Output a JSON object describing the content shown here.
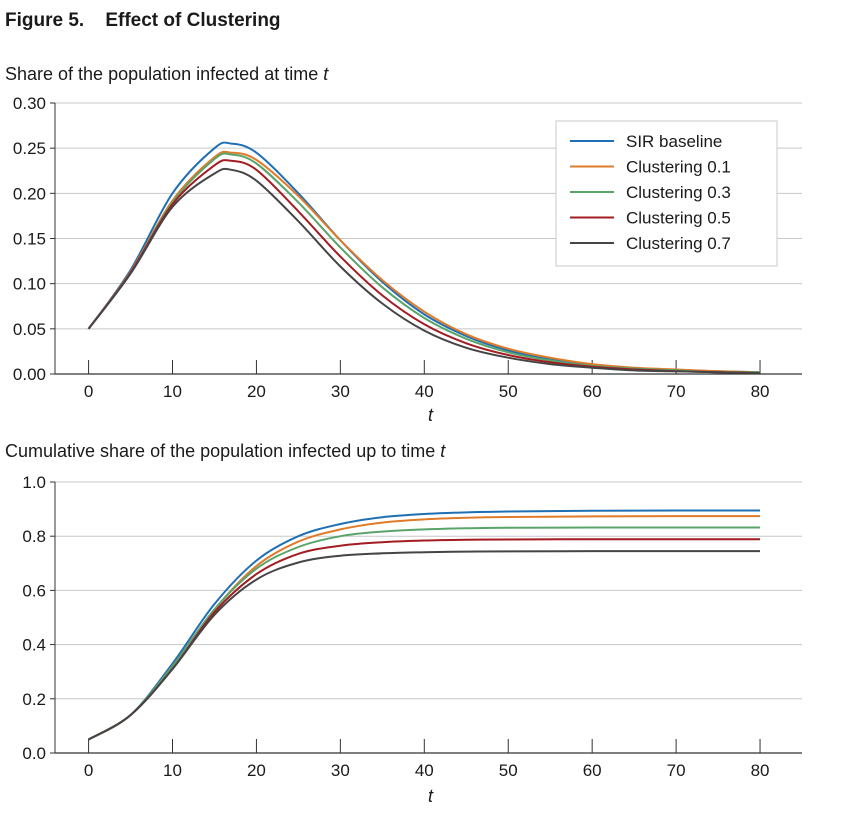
{
  "figure": {
    "label": "Figure 5.",
    "title": "Effect of Clustering"
  },
  "colors": {
    "SIR baseline": "#1f6fb4",
    "Clustering 0.1": "#e07b2a",
    "Clustering 0.3": "#5aa469",
    "Clustering 0.5": "#a31c22",
    "Clustering 0.7": "#454545",
    "grid": "#c8c8c8",
    "axis": "#333333"
  },
  "chart_data": [
    {
      "type": "line",
      "title": "Share of the population infected at time ",
      "title_italic": "t",
      "xlabel": "t",
      "ylabel": "",
      "xlim": [
        -4,
        85
      ],
      "ylim": [
        0,
        0.3
      ],
      "xticks": [
        0,
        10,
        20,
        30,
        40,
        50,
        60,
        70,
        80
      ],
      "yticks": [
        "0.00",
        "0.05",
        "0.10",
        "0.15",
        "0.20",
        "0.25",
        "0.30"
      ],
      "grid": "horizontal",
      "legend": "top-right",
      "x": [
        0,
        5,
        10,
        15,
        17,
        20,
        25,
        30,
        35,
        40,
        45,
        50,
        55,
        60,
        65,
        70,
        75,
        80
      ],
      "series": [
        {
          "name": "SIR baseline",
          "values": [
            0.05,
            0.115,
            0.2,
            0.25,
            0.255,
            0.245,
            0.2,
            0.148,
            0.102,
            0.066,
            0.042,
            0.026,
            0.016,
            0.01,
            0.006,
            0.004,
            0.003,
            0.002
          ]
        },
        {
          "name": "Clustering 0.1",
          "values": [
            0.05,
            0.113,
            0.192,
            0.24,
            0.245,
            0.237,
            0.197,
            0.148,
            0.104,
            0.069,
            0.044,
            0.028,
            0.018,
            0.011,
            0.007,
            0.005,
            0.003,
            0.002
          ]
        },
        {
          "name": "Clustering 0.3",
          "values": [
            0.05,
            0.112,
            0.19,
            0.238,
            0.243,
            0.233,
            0.19,
            0.14,
            0.096,
            0.062,
            0.039,
            0.024,
            0.015,
            0.009,
            0.006,
            0.004,
            0.002,
            0.002
          ]
        },
        {
          "name": "Clustering 0.5",
          "values": [
            0.05,
            0.112,
            0.188,
            0.231,
            0.236,
            0.226,
            0.18,
            0.13,
            0.087,
            0.055,
            0.034,
            0.021,
            0.013,
            0.008,
            0.005,
            0.003,
            0.002,
            0.001
          ]
        },
        {
          "name": "Clustering 0.7",
          "values": [
            0.05,
            0.111,
            0.185,
            0.222,
            0.226,
            0.214,
            0.169,
            0.119,
            0.078,
            0.048,
            0.029,
            0.018,
            0.011,
            0.007,
            0.004,
            0.003,
            0.002,
            0.001
          ]
        }
      ]
    },
    {
      "type": "line",
      "title": "Cumulative share of the population infected up to time ",
      "title_italic": "t",
      "xlabel": "t",
      "ylabel": "",
      "xlim": [
        -4,
        85
      ],
      "ylim": [
        0,
        1.0
      ],
      "xticks": [
        0,
        10,
        20,
        30,
        40,
        50,
        60,
        70,
        80
      ],
      "yticks": [
        "0.0",
        "0.2",
        "0.4",
        "0.6",
        "0.8",
        "1.0"
      ],
      "grid": "horizontal",
      "legend": "none",
      "x": [
        0,
        5,
        10,
        15,
        20,
        25,
        30,
        35,
        40,
        45,
        50,
        60,
        70,
        80
      ],
      "series": [
        {
          "name": "SIR baseline",
          "values": [
            0.05,
            0.14,
            0.33,
            0.55,
            0.71,
            0.8,
            0.845,
            0.87,
            0.882,
            0.888,
            0.891,
            0.894,
            0.895,
            0.895
          ]
        },
        {
          "name": "Clustering 0.1",
          "values": [
            0.05,
            0.14,
            0.32,
            0.53,
            0.69,
            0.78,
            0.825,
            0.85,
            0.862,
            0.868,
            0.871,
            0.873,
            0.874,
            0.874
          ]
        },
        {
          "name": "Clustering 0.3",
          "values": [
            0.05,
            0.14,
            0.32,
            0.53,
            0.68,
            0.76,
            0.8,
            0.817,
            0.825,
            0.829,
            0.831,
            0.832,
            0.832,
            0.832
          ]
        },
        {
          "name": "Clustering 0.5",
          "values": [
            0.05,
            0.14,
            0.31,
            0.52,
            0.66,
            0.735,
            0.765,
            0.778,
            0.784,
            0.787,
            0.788,
            0.789,
            0.789,
            0.789
          ]
        },
        {
          "name": "Clustering 0.7",
          "values": [
            0.05,
            0.14,
            0.31,
            0.51,
            0.64,
            0.703,
            0.728,
            0.737,
            0.741,
            0.743,
            0.744,
            0.745,
            0.745,
            0.745
          ]
        }
      ]
    }
  ]
}
